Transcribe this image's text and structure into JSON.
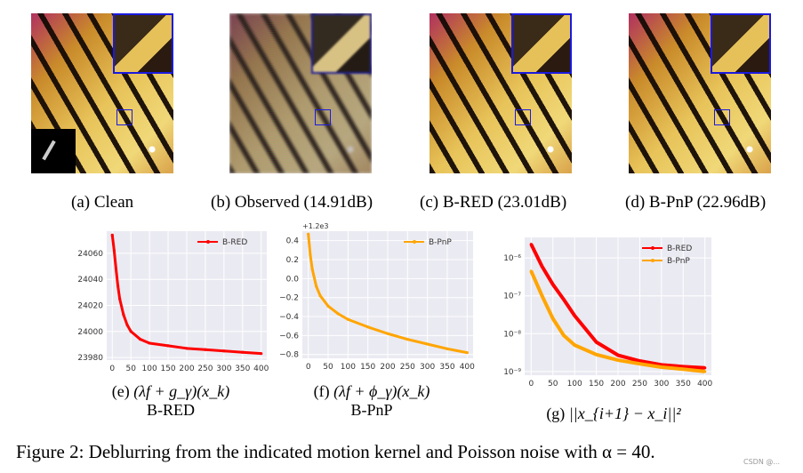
{
  "images": [
    {
      "caption": "(a) Clean",
      "kind": "clean"
    },
    {
      "caption": "(b) Observed (14.91dB)",
      "kind": "observed"
    },
    {
      "caption": "(c) B-RED (23.01dB)",
      "kind": "restored"
    },
    {
      "caption": "(d) B-PnP (22.96dB)",
      "kind": "restored"
    }
  ],
  "captions": {
    "e_math": "(λf + g_γ)(x_k)",
    "e_label": "(e)",
    "e_sub": "B-RED",
    "f_math": "(λf + ϕ_γ)(x_k)",
    "f_label": "(f)",
    "f_sub": "B-PnP",
    "g_label": "(g)",
    "g_math": "||x_{i+1} − x_i||²"
  },
  "figure_caption": "Figure 2: Deblurring from the indicated motion kernel and Poisson noise with α = 40.",
  "watermark": "CSDN @...",
  "chart_data": [
    {
      "type": "line",
      "id": "e",
      "scale": "linear",
      "xlim": [
        -15,
        415
      ],
      "ylim": [
        23978,
        24077
      ],
      "xticks": [
        0,
        50,
        100,
        150,
        200,
        250,
        300,
        350,
        400
      ],
      "yticks": [
        23980,
        24000,
        24020,
        24040,
        24060
      ],
      "ytick_labels": [
        "23980",
        "24000",
        "24020",
        "24040",
        "24060"
      ],
      "offset_label": "",
      "grid": true,
      "legend": "top-right",
      "series": [
        {
          "name": "B-RED",
          "color": "#ff0000",
          "x": [
            0,
            5,
            10,
            15,
            20,
            30,
            40,
            50,
            75,
            100,
            150,
            200,
            250,
            300,
            350,
            400
          ],
          "y": [
            24074,
            24062,
            24048,
            24035,
            24025,
            24013,
            24005,
            24000,
            23994,
            23991,
            23989,
            23987,
            23986,
            23985,
            23984,
            23983
          ]
        }
      ]
    },
    {
      "type": "line",
      "id": "f",
      "scale": "linear",
      "xlim": [
        -15,
        415
      ],
      "ylim": [
        -0.84,
        0.5
      ],
      "xticks": [
        0,
        50,
        100,
        150,
        200,
        250,
        300,
        350,
        400
      ],
      "yticks": [
        -0.8,
        -0.6,
        -0.4,
        -0.2,
        0.0,
        0.2,
        0.4
      ],
      "ytick_labels": [
        "−0.8",
        "−0.6",
        "−0.4",
        "−0.2",
        "0.0",
        "0.2",
        "0.4"
      ],
      "offset_label": "+1.2e3",
      "grid": true,
      "legend": "top-right",
      "series": [
        {
          "name": "B-PnP",
          "color": "#ffa500",
          "x": [
            0,
            5,
            10,
            20,
            30,
            50,
            75,
            100,
            150,
            200,
            250,
            300,
            350,
            400
          ],
          "y": [
            0.47,
            0.25,
            0.1,
            -0.08,
            -0.18,
            -0.29,
            -0.37,
            -0.43,
            -0.51,
            -0.58,
            -0.64,
            -0.69,
            -0.74,
            -0.78
          ]
        }
      ]
    },
    {
      "type": "line",
      "id": "g",
      "scale": "log",
      "xlim": [
        -15,
        415
      ],
      "ylim": [
        8e-10,
        3.5e-06
      ],
      "xticks": [
        0,
        50,
        100,
        150,
        200,
        250,
        300,
        350,
        400
      ],
      "yticks": [
        1e-09,
        1e-08,
        1e-07,
        1e-06
      ],
      "ytick_labels": [
        "10⁻⁹",
        "10⁻⁸",
        "10⁻⁷",
        "10⁻⁶"
      ],
      "offset_label": "",
      "grid": true,
      "legend": "top-right",
      "series": [
        {
          "name": "B-RED",
          "color": "#ff0000",
          "x": [
            0,
            25,
            50,
            75,
            100,
            150,
            200,
            250,
            300,
            350,
            400
          ],
          "y": [
            2.3e-06,
            6e-07,
            2e-07,
            8e-08,
            3e-08,
            6e-09,
            2.7e-09,
            1.9e-09,
            1.5e-09,
            1.35e-09,
            1.25e-09
          ]
        },
        {
          "name": "B-PnP",
          "color": "#ffa500",
          "x": [
            0,
            25,
            50,
            75,
            100,
            150,
            200,
            250,
            300,
            350,
            400
          ],
          "y": [
            4.5e-07,
            1e-07,
            2.5e-08,
            9e-09,
            5e-09,
            2.8e-09,
            2e-09,
            1.6e-09,
            1.3e-09,
            1.15e-09,
            1e-09
          ]
        }
      ]
    }
  ]
}
